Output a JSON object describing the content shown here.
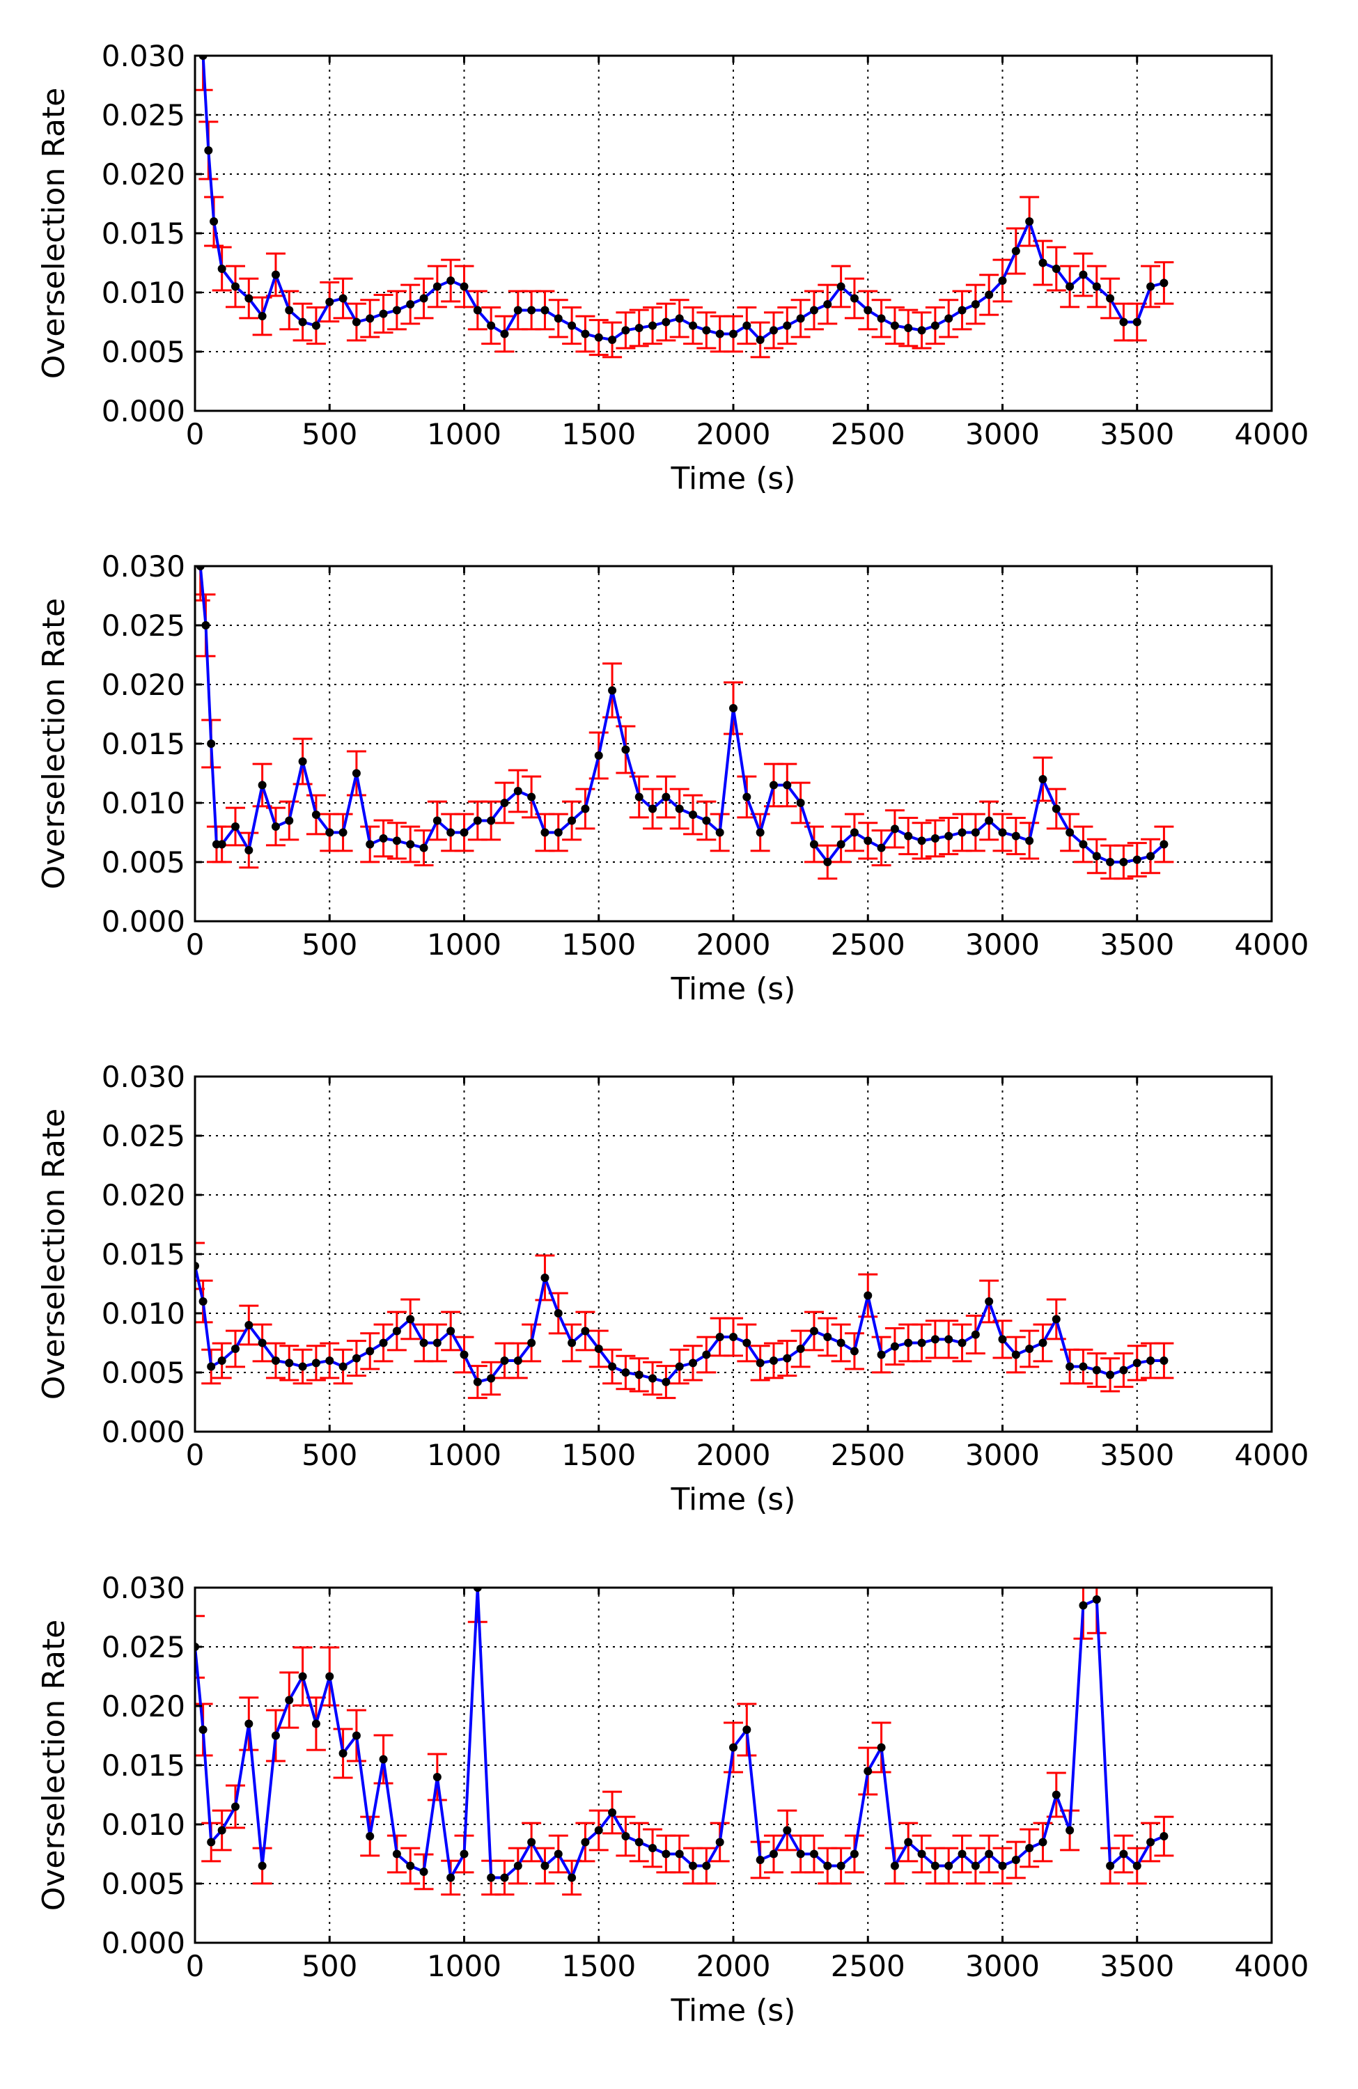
{
  "colors": {
    "line": "#0000ff",
    "marker": "#000000",
    "error_bars": "#ff0000",
    "background": "#ffffff"
  },
  "chart_data": [
    {
      "type": "line",
      "xlabel": "Time (s)",
      "ylabel": "Overselection Rate",
      "xlim": [
        0,
        4000
      ],
      "ylim": [
        0,
        0.03
      ],
      "xticks": [
        "0",
        "500",
        "1000",
        "1500",
        "2000",
        "2500",
        "3000",
        "3500",
        "4000"
      ],
      "yticks": [
        "0.000",
        "0.005",
        "0.010",
        "0.015",
        "0.020",
        "0.025",
        "0.030"
      ],
      "grid": true,
      "error_bars": true,
      "x": [
        30,
        50,
        70,
        100,
        150,
        200,
        250,
        300,
        350,
        400,
        450,
        500,
        550,
        600,
        650,
        700,
        750,
        800,
        850,
        900,
        950,
        1000,
        1050,
        1100,
        1150,
        1200,
        1250,
        1300,
        1350,
        1400,
        1450,
        1500,
        1550,
        1600,
        1650,
        1700,
        1750,
        1800,
        1850,
        1900,
        1950,
        2000,
        2050,
        2100,
        2150,
        2200,
        2250,
        2300,
        2350,
        2400,
        2450,
        2500,
        2550,
        2600,
        2650,
        2700,
        2750,
        2800,
        2850,
        2900,
        2950,
        3000,
        3050,
        3100,
        3150,
        3200,
        3250,
        3300,
        3350,
        3400,
        3450,
        3500,
        3550,
        3600
      ],
      "y": [
        0.03,
        0.022,
        0.016,
        0.012,
        0.0105,
        0.0095,
        0.008,
        0.0115,
        0.0085,
        0.0075,
        0.0072,
        0.0092,
        0.0095,
        0.0075,
        0.0078,
        0.0082,
        0.0085,
        0.009,
        0.0095,
        0.0105,
        0.011,
        0.0105,
        0.0085,
        0.0072,
        0.0065,
        0.0085,
        0.0085,
        0.0085,
        0.0078,
        0.0072,
        0.0065,
        0.0062,
        0.006,
        0.0068,
        0.007,
        0.0072,
        0.0075,
        0.0078,
        0.0072,
        0.0068,
        0.0065,
        0.0065,
        0.0072,
        0.006,
        0.0068,
        0.0072,
        0.0078,
        0.0085,
        0.009,
        0.0105,
        0.0095,
        0.0085,
        0.0078,
        0.0072,
        0.007,
        0.0068,
        0.0072,
        0.0078,
        0.0085,
        0.009,
        0.0098,
        0.011,
        0.0135,
        0.016,
        0.0125,
        0.012,
        0.0105,
        0.0115,
        0.0105,
        0.0095,
        0.0075,
        0.0075,
        0.0105,
        0.0108
      ]
    },
    {
      "type": "line",
      "xlabel": "Time (s)",
      "ylabel": "Overselection Rate",
      "xlim": [
        0,
        4000
      ],
      "ylim": [
        0,
        0.03
      ],
      "xticks": [
        "0",
        "500",
        "1000",
        "1500",
        "2000",
        "2500",
        "3000",
        "3500",
        "4000"
      ],
      "yticks": [
        "0.000",
        "0.005",
        "0.010",
        "0.015",
        "0.020",
        "0.025",
        "0.030"
      ],
      "grid": true,
      "error_bars": true,
      "x": [
        20,
        40,
        60,
        80,
        100,
        150,
        200,
        250,
        300,
        350,
        400,
        450,
        500,
        550,
        600,
        650,
        700,
        750,
        800,
        850,
        900,
        950,
        1000,
        1050,
        1100,
        1150,
        1200,
        1250,
        1300,
        1350,
        1400,
        1450,
        1500,
        1550,
        1600,
        1650,
        1700,
        1750,
        1800,
        1850,
        1900,
        1950,
        2000,
        2050,
        2100,
        2150,
        2200,
        2250,
        2300,
        2350,
        2400,
        2450,
        2500,
        2550,
        2600,
        2650,
        2700,
        2750,
        2800,
        2850,
        2900,
        2950,
        3000,
        3050,
        3100,
        3150,
        3200,
        3250,
        3300,
        3350,
        3400,
        3450,
        3500,
        3550,
        3600
      ],
      "y": [
        0.03,
        0.025,
        0.015,
        0.0065,
        0.0065,
        0.008,
        0.006,
        0.0115,
        0.008,
        0.0085,
        0.0135,
        0.009,
        0.0075,
        0.0075,
        0.0125,
        0.0065,
        0.007,
        0.0068,
        0.0065,
        0.0062,
        0.0085,
        0.0075,
        0.0075,
        0.0085,
        0.0085,
        0.01,
        0.011,
        0.0105,
        0.0075,
        0.0075,
        0.0085,
        0.0095,
        0.014,
        0.0195,
        0.0145,
        0.0105,
        0.0095,
        0.0105,
        0.0095,
        0.009,
        0.0085,
        0.0075,
        0.018,
        0.0105,
        0.0075,
        0.0115,
        0.0115,
        0.01,
        0.0065,
        0.005,
        0.0065,
        0.0075,
        0.0068,
        0.0062,
        0.0078,
        0.0072,
        0.0068,
        0.007,
        0.0072,
        0.0075,
        0.0075,
        0.0085,
        0.0075,
        0.0072,
        0.0068,
        0.012,
        0.0095,
        0.0075,
        0.0065,
        0.0055,
        0.005,
        0.005,
        0.0052,
        0.0055,
        0.0065
      ]
    },
    {
      "type": "line",
      "xlabel": "Time (s)",
      "ylabel": "Overselection Rate",
      "xlim": [
        0,
        4000
      ],
      "ylim": [
        0,
        0.03
      ],
      "xticks": [
        "0",
        "500",
        "1000",
        "1500",
        "2000",
        "2500",
        "3000",
        "3500",
        "4000"
      ],
      "yticks": [
        "0.000",
        "0.005",
        "0.010",
        "0.015",
        "0.020",
        "0.025",
        "0.030"
      ],
      "grid": true,
      "error_bars": true,
      "x": [
        0,
        30,
        60,
        100,
        150,
        200,
        250,
        300,
        350,
        400,
        450,
        500,
        550,
        600,
        650,
        700,
        750,
        800,
        850,
        900,
        950,
        1000,
        1050,
        1100,
        1150,
        1200,
        1250,
        1300,
        1350,
        1400,
        1450,
        1500,
        1550,
        1600,
        1650,
        1700,
        1750,
        1800,
        1850,
        1900,
        1950,
        2000,
        2050,
        2100,
        2150,
        2200,
        2250,
        2300,
        2350,
        2400,
        2450,
        2500,
        2550,
        2600,
        2650,
        2700,
        2750,
        2800,
        2850,
        2900,
        2950,
        3000,
        3050,
        3100,
        3150,
        3200,
        3250,
        3300,
        3350,
        3400,
        3450,
        3500,
        3550,
        3600
      ],
      "y": [
        0.014,
        0.011,
        0.0055,
        0.006,
        0.007,
        0.009,
        0.0075,
        0.006,
        0.0058,
        0.0055,
        0.0058,
        0.006,
        0.0055,
        0.0062,
        0.0068,
        0.0075,
        0.0085,
        0.0095,
        0.0075,
        0.0075,
        0.0085,
        0.0065,
        0.0042,
        0.0045,
        0.006,
        0.006,
        0.0075,
        0.013,
        0.01,
        0.0075,
        0.0085,
        0.007,
        0.0055,
        0.005,
        0.0048,
        0.0045,
        0.0042,
        0.0055,
        0.0058,
        0.0065,
        0.008,
        0.008,
        0.0075,
        0.0058,
        0.006,
        0.0062,
        0.007,
        0.0085,
        0.008,
        0.0075,
        0.0068,
        0.0115,
        0.0065,
        0.0072,
        0.0075,
        0.0075,
        0.0078,
        0.0078,
        0.0075,
        0.0082,
        0.011,
        0.0078,
        0.0065,
        0.007,
        0.0075,
        0.0095,
        0.0055,
        0.0055,
        0.0052,
        0.0048,
        0.0052,
        0.0058,
        0.006,
        0.006
      ]
    },
    {
      "type": "line",
      "xlabel": "Time (s)",
      "ylabel": "Overselection Rate",
      "xlim": [
        0,
        4000
      ],
      "ylim": [
        0,
        0.03
      ],
      "xticks": [
        "0",
        "500",
        "1000",
        "1500",
        "2000",
        "2500",
        "3000",
        "3500",
        "4000"
      ],
      "yticks": [
        "0.000",
        "0.005",
        "0.010",
        "0.015",
        "0.020",
        "0.025",
        "0.030"
      ],
      "grid": true,
      "error_bars": true,
      "x": [
        0,
        30,
        60,
        100,
        150,
        200,
        250,
        300,
        350,
        400,
        450,
        500,
        550,
        600,
        650,
        700,
        750,
        800,
        850,
        900,
        950,
        1000,
        1050,
        1100,
        1150,
        1200,
        1250,
        1300,
        1350,
        1400,
        1450,
        1500,
        1550,
        1600,
        1650,
        1700,
        1750,
        1800,
        1850,
        1900,
        1950,
        2000,
        2050,
        2100,
        2150,
        2200,
        2250,
        2300,
        2350,
        2400,
        2450,
        2500,
        2550,
        2600,
        2650,
        2700,
        2750,
        2800,
        2850,
        2900,
        2950,
        3000,
        3050,
        3100,
        3150,
        3200,
        3250,
        3300,
        3350,
        3400,
        3450,
        3500,
        3550,
        3600
      ],
      "y": [
        0.025,
        0.018,
        0.0085,
        0.0095,
        0.0115,
        0.0185,
        0.0065,
        0.0175,
        0.0205,
        0.0225,
        0.0185,
        0.0225,
        0.016,
        0.0175,
        0.009,
        0.0155,
        0.0075,
        0.0065,
        0.006,
        0.014,
        0.0055,
        0.0075,
        0.03,
        0.0055,
        0.0055,
        0.0065,
        0.0085,
        0.0065,
        0.0075,
        0.0055,
        0.0085,
        0.0095,
        0.011,
        0.009,
        0.0085,
        0.008,
        0.0075,
        0.0075,
        0.0065,
        0.0065,
        0.0085,
        0.0165,
        0.018,
        0.007,
        0.0075,
        0.0095,
        0.0075,
        0.0075,
        0.0065,
        0.0065,
        0.0075,
        0.0145,
        0.0165,
        0.0065,
        0.0085,
        0.0075,
        0.0065,
        0.0065,
        0.0075,
        0.0065,
        0.0075,
        0.0065,
        0.007,
        0.008,
        0.0085,
        0.0125,
        0.0095,
        0.0285,
        0.029,
        0.0065,
        0.0075,
        0.0065,
        0.0085,
        0.009
      ]
    }
  ]
}
